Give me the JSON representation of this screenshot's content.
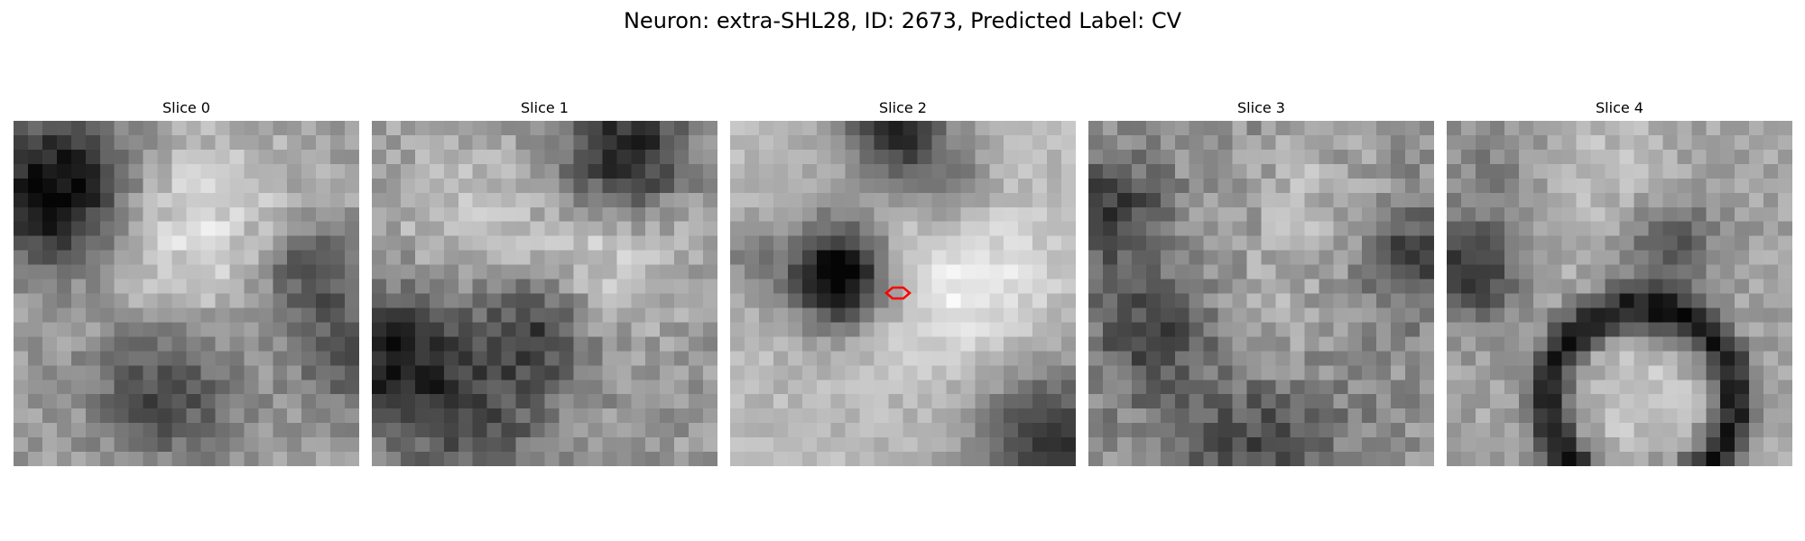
{
  "figure": {
    "title": "Neuron: extra-SHL28, ID: 2673, Predicted Label: CV"
  },
  "panels": [
    {
      "title": "Slice 0"
    },
    {
      "title": "Slice 1"
    },
    {
      "title": "Slice 2"
    },
    {
      "title": "Slice 3"
    },
    {
      "title": "Slice 4"
    }
  ],
  "colormap": "gray",
  "marker": {
    "slice": "Slice 2",
    "shape": "hexagon",
    "color": "#ff0000"
  }
}
